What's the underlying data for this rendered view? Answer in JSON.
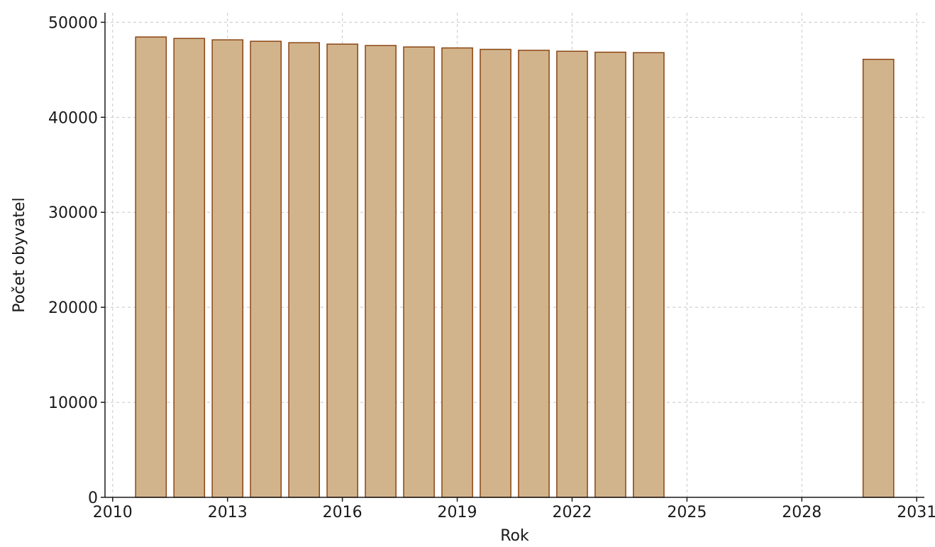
{
  "chart_data": {
    "type": "bar",
    "title": "",
    "xlabel": "Rok",
    "ylabel": "Počet obyvatel",
    "x": [
      2011,
      2012,
      2013,
      2014,
      2015,
      2016,
      2017,
      2018,
      2019,
      2020,
      2021,
      2022,
      2023,
      2024,
      2030
    ],
    "values": [
      48450,
      48300,
      48150,
      48000,
      47850,
      47700,
      47550,
      47400,
      47300,
      47150,
      47050,
      46950,
      46850,
      46800,
      46100
    ],
    "xlim": [
      2009.8,
      2031.2
    ],
    "ylim": [
      0,
      51000
    ],
    "xticks": [
      2010,
      2013,
      2016,
      2019,
      2022,
      2025,
      2028,
      2031
    ],
    "yticks": [
      0,
      10000,
      20000,
      30000,
      40000,
      50000
    ],
    "grid": true,
    "bar_color": "#d2b48c",
    "bar_edge_color": "#8b4513"
  }
}
